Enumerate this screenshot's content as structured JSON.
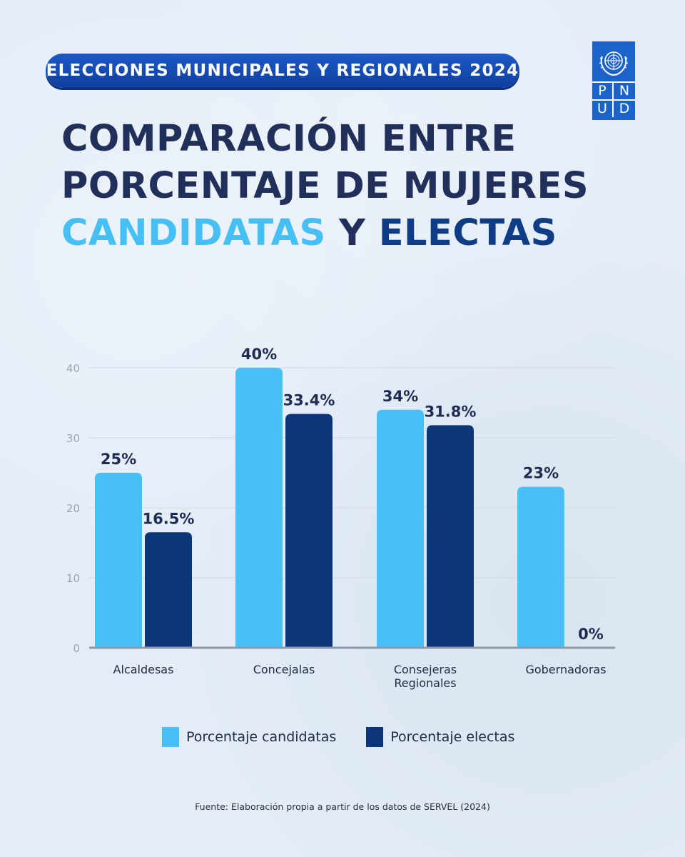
{
  "header": {
    "pill_text": "ELECCIONES MUNICIPALES Y REGIONALES 2024",
    "title_line1": "COMPARACIÓN ENTRE",
    "title_line2": "PORCENTAJE DE MUJERES",
    "title_line3_a": "CANDIDATAS",
    "title_line3_b": " Y ",
    "title_line3_c": "ELECTAS"
  },
  "logo": {
    "letters": [
      "P",
      "N",
      "U",
      "D"
    ],
    "icon": "un-emblem-icon"
  },
  "chart_data": {
    "type": "bar",
    "title": "",
    "xlabel": "",
    "ylabel": "",
    "categories": [
      [
        "Alcaldesas"
      ],
      [
        "Concejalas"
      ],
      [
        "Consejeras",
        "Regionales"
      ],
      [
        "Gobernadoras"
      ]
    ],
    "series": [
      {
        "name": "Porcentaje candidatas",
        "color": "#47c1f5",
        "values": [
          25,
          40,
          34,
          23
        ],
        "labels": [
          "25%",
          "40%",
          "34%",
          "23%"
        ]
      },
      {
        "name": "Porcentaje electas",
        "color": "#0c3679",
        "values": [
          16.5,
          33.4,
          31.8,
          0
        ],
        "labels": [
          "16.5%",
          "33.4%",
          "31.8%",
          "0%"
        ]
      }
    ],
    "ylim": [
      0,
      40
    ],
    "yticks": [
      0,
      10,
      20,
      30,
      40
    ],
    "grid": true,
    "legend_position": "bottom"
  },
  "legend": {
    "items": [
      {
        "label": "Porcentaje candidatas",
        "color": "#47c1f5"
      },
      {
        "label": "Porcentaje electas",
        "color": "#0c3679"
      }
    ]
  },
  "footer": {
    "source": "Fuente: Elaboración propia a partir de los datos de SERVEL (2024)"
  },
  "colors": {
    "title_dark": "#20305b",
    "accent_light": "#46c0f4",
    "accent_dark": "#0e3d86"
  }
}
